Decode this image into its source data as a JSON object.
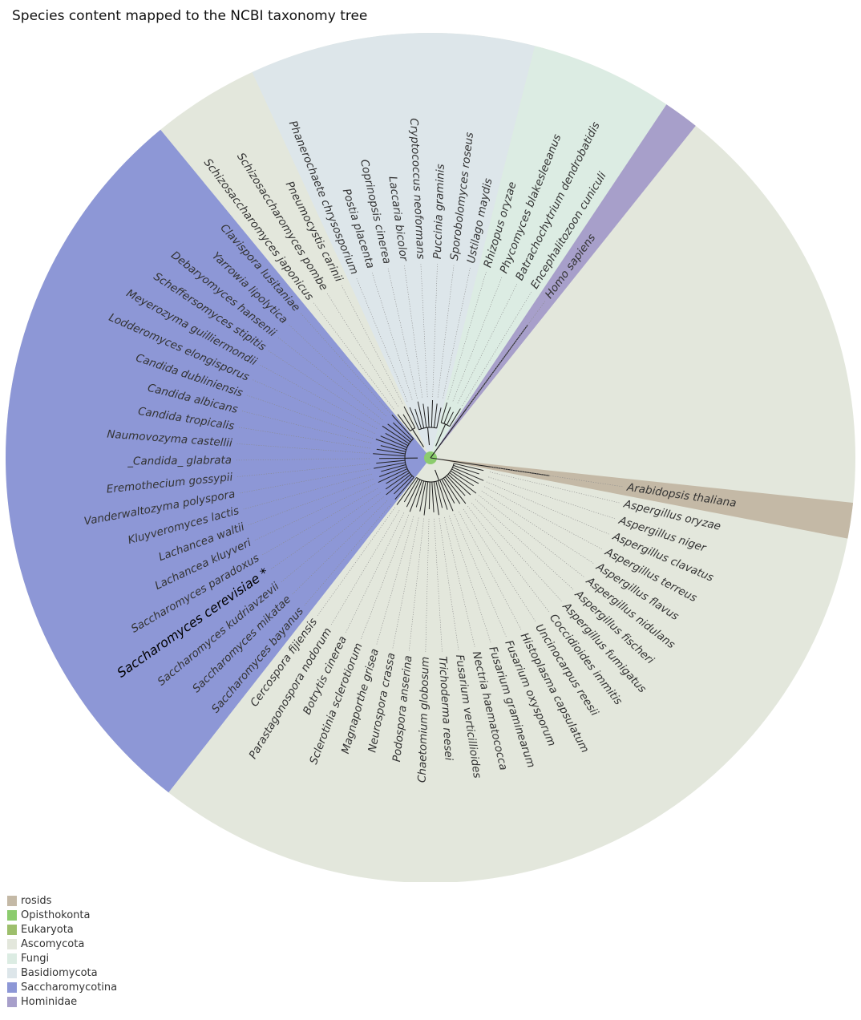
{
  "title": "Species content mapped to the NCBI taxonomy tree",
  "colors": {
    "rosids": "#c4b9a6",
    "Opisthokonta": "#8ccc6e",
    "Eukaryota": "#9dbf6c",
    "Ascomycota": "#e3e7dc",
    "Fungi": "#dcece3",
    "Basidiomycota": "#dde6ea",
    "Saccharomycotina": "#8d97d6",
    "Hominidae": "#a79fca"
  },
  "legend": [
    {
      "label": "rosids",
      "color": "#c4b9a6"
    },
    {
      "label": "Opisthokonta",
      "color": "#8ccc6e"
    },
    {
      "label": "Eukaryota",
      "color": "#9dbf6c"
    },
    {
      "label": "Ascomycota",
      "color": "#e3e7dc"
    },
    {
      "label": "Fungi",
      "color": "#dcece3"
    },
    {
      "label": "Basidiomycota",
      "color": "#dde6ea"
    },
    {
      "label": "Saccharomycotina",
      "color": "#8d97d6"
    },
    {
      "label": "Hominidae",
      "color": "#a79fca"
    }
  ],
  "species": [
    {
      "name": "Arabidopsis thaliana",
      "group": "rosids"
    },
    {
      "name": "Aspergillus oryzae",
      "group": "Ascomycota"
    },
    {
      "name": "Aspergillus niger",
      "group": "Ascomycota"
    },
    {
      "name": "Aspergillus clavatus",
      "group": "Ascomycota"
    },
    {
      "name": "Aspergillus terreus",
      "group": "Ascomycota"
    },
    {
      "name": "Aspergillus flavus",
      "group": "Ascomycota"
    },
    {
      "name": "Aspergillus nidulans",
      "group": "Ascomycota"
    },
    {
      "name": "Aspergillus fischeri",
      "group": "Ascomycota"
    },
    {
      "name": "Aspergillus fumigatus",
      "group": "Ascomycota"
    },
    {
      "name": "Coccidioides immitis",
      "group": "Ascomycota"
    },
    {
      "name": "Uncinocarpus reesii",
      "group": "Ascomycota"
    },
    {
      "name": "Histoplasma capsulatum",
      "group": "Ascomycota"
    },
    {
      "name": "Fusarium oxysporum",
      "group": "Ascomycota"
    },
    {
      "name": "Fusarium graminearum",
      "group": "Ascomycota"
    },
    {
      "name": "Nectria haematococca",
      "group": "Ascomycota"
    },
    {
      "name": "Fusarium verticillioides",
      "group": "Ascomycota"
    },
    {
      "name": "Trichoderma reesei",
      "group": "Ascomycota"
    },
    {
      "name": "Chaetomium globosum",
      "group": "Ascomycota"
    },
    {
      "name": "Podospora anserina",
      "group": "Ascomycota"
    },
    {
      "name": "Neurospora crassa",
      "group": "Ascomycota"
    },
    {
      "name": "Magnaporthe grisea",
      "group": "Ascomycota"
    },
    {
      "name": "Sclerotinia sclerotiorum",
      "group": "Ascomycota"
    },
    {
      "name": "Botrytis cinerea",
      "group": "Ascomycota"
    },
    {
      "name": "Parastagonospora nodorum",
      "group": "Ascomycota"
    },
    {
      "name": "Cercospora fijiensis",
      "group": "Ascomycota"
    },
    {
      "name": "Saccharomyces bayanus",
      "group": "Saccharomycotina"
    },
    {
      "name": "Saccharomyces mikatae",
      "group": "Saccharomycotina"
    },
    {
      "name": "Saccharomyces kudriavzevii",
      "group": "Saccharomycotina"
    },
    {
      "name": "Saccharomyces cerevisiae *",
      "group": "Saccharomycotina",
      "highlight": true
    },
    {
      "name": "Saccharomyces paradoxus",
      "group": "Saccharomycotina"
    },
    {
      "name": "Lachancea kluyveri",
      "group": "Saccharomycotina"
    },
    {
      "name": "Lachancea waltii",
      "group": "Saccharomycotina"
    },
    {
      "name": "Kluyveromyces lactis",
      "group": "Saccharomycotina"
    },
    {
      "name": "Vanderwaltozyma polyspora",
      "group": "Saccharomycotina"
    },
    {
      "name": "Eremothecium gossypii",
      "group": "Saccharomycotina"
    },
    {
      "name": "_Candida_ glabrata",
      "group": "Saccharomycotina"
    },
    {
      "name": "Naumovozyma castellii",
      "group": "Saccharomycotina"
    },
    {
      "name": "Candida tropicalis",
      "group": "Saccharomycotina"
    },
    {
      "name": "Candida albicans",
      "group": "Saccharomycotina"
    },
    {
      "name": "Candida dubliniensis",
      "group": "Saccharomycotina"
    },
    {
      "name": "Lodderomyces elongisporus",
      "group": "Saccharomycotina"
    },
    {
      "name": "Meyerozyma guilliermondii",
      "group": "Saccharomycotina"
    },
    {
      "name": "Scheffersomyces stipitis",
      "group": "Saccharomycotina"
    },
    {
      "name": "Debaryomyces hansenii",
      "group": "Saccharomycotina"
    },
    {
      "name": "Yarrowia lipolytica",
      "group": "Saccharomycotina"
    },
    {
      "name": "Clavispora lusitaniae",
      "group": "Saccharomycotina"
    },
    {
      "name": "Schizosaccharomyces japonicus",
      "group": "Ascomycota"
    },
    {
      "name": "Schizosaccharomyces pombe",
      "group": "Ascomycota"
    },
    {
      "name": "Pneumocystis carinii",
      "group": "Ascomycota"
    },
    {
      "name": "Phanerochaete chrysosporium",
      "group": "Basidiomycota"
    },
    {
      "name": "Postia placenta",
      "group": "Basidiomycota"
    },
    {
      "name": "Coprinopsis cinerea",
      "group": "Basidiomycota"
    },
    {
      "name": "Laccaria bicolor",
      "group": "Basidiomycota"
    },
    {
      "name": "Cryptococcus neoformans",
      "group": "Basidiomycota"
    },
    {
      "name": "Puccinia graminis",
      "group": "Basidiomycota"
    },
    {
      "name": "Sporobolomyces roseus",
      "group": "Basidiomycota"
    },
    {
      "name": "Ustilago maydis",
      "group": "Basidiomycota"
    },
    {
      "name": "Rhizopus oryzae",
      "group": "Fungi"
    },
    {
      "name": "Phycomyces blakesleeanus",
      "group": "Fungi"
    },
    {
      "name": "Batrachochytrium dendrobatidis",
      "group": "Fungi"
    },
    {
      "name": "Encephalitozoon cuniculi",
      "group": "Fungi"
    },
    {
      "name": "Homo sapiens",
      "group": "Hominidae"
    }
  ]
}
